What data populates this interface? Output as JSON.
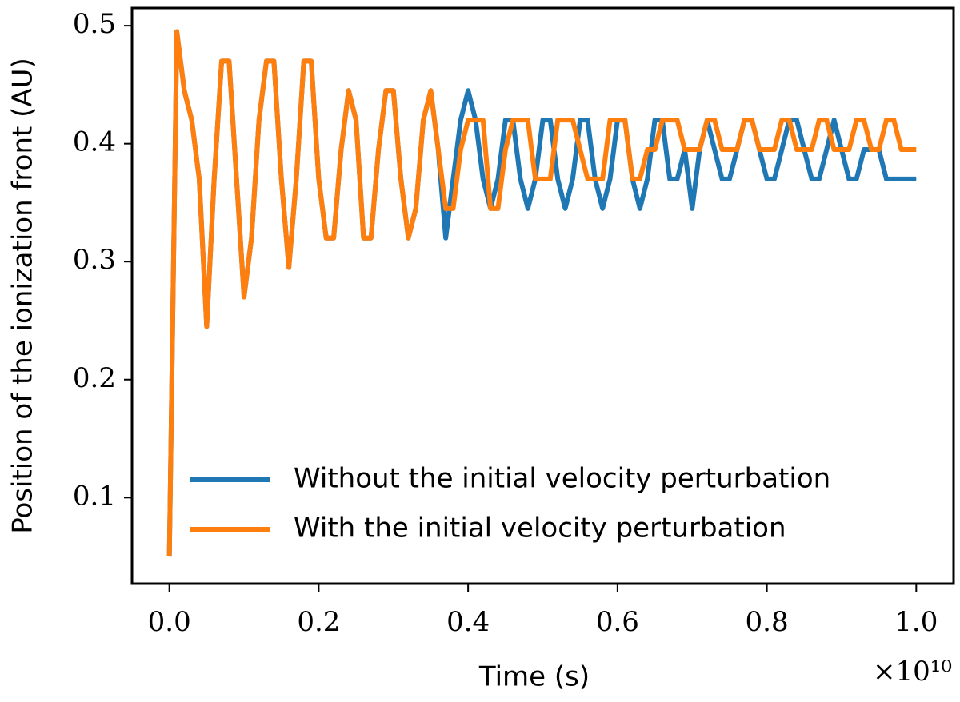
{
  "chart_data": {
    "type": "line",
    "xlabel": "Time (s)",
    "ylabel": "Position of the ionization front (AU)",
    "x_offset_label": "×10¹⁰",
    "xlim": [
      -0.05,
      1.05
    ],
    "ylim": [
      0.027,
      0.515
    ],
    "xticks": [
      {
        "value": 0,
        "label": "0.0"
      },
      {
        "value": 0.2,
        "label": "0.2"
      },
      {
        "value": 0.4,
        "label": "0.4"
      },
      {
        "value": 0.6,
        "label": "0.6"
      },
      {
        "value": 0.8,
        "label": "0.8"
      },
      {
        "value": 1,
        "label": "1.0"
      }
    ],
    "yticks": [
      0.1,
      0.2,
      0.3,
      0.4,
      0.5
    ],
    "grid": false,
    "legend": "lower right",
    "x": [
      0,
      0.01,
      0.02,
      0.03,
      0.04,
      0.05,
      0.06,
      0.07,
      0.08,
      0.09,
      0.1,
      0.11,
      0.12,
      0.13,
      0.14,
      0.15,
      0.16,
      0.17,
      0.18,
      0.19,
      0.2,
      0.21,
      0.22,
      0.23,
      0.24,
      0.25,
      0.26,
      0.27,
      0.28,
      0.29,
      0.3,
      0.31,
      0.32,
      0.33,
      0.34,
      0.35,
      0.36,
      0.37,
      0.38,
      0.39,
      0.4,
      0.41,
      0.42,
      0.43,
      0.44,
      0.45,
      0.46,
      0.47,
      0.48,
      0.49,
      0.5,
      0.51,
      0.52,
      0.53,
      0.54,
      0.55,
      0.56,
      0.57,
      0.58,
      0.59,
      0.6,
      0.61,
      0.62,
      0.63,
      0.64,
      0.65,
      0.66,
      0.67,
      0.68,
      0.69,
      0.7,
      0.71,
      0.72,
      0.73,
      0.74,
      0.75,
      0.76,
      0.77,
      0.78,
      0.79,
      0.8,
      0.81,
      0.82,
      0.83,
      0.84,
      0.85,
      0.86,
      0.87,
      0.88,
      0.89,
      0.9,
      0.91,
      0.92,
      0.93,
      0.94,
      0.95,
      0.96,
      0.97,
      0.98,
      0.99,
      1
    ],
    "series": [
      {
        "name": "Without the initial velocity perturbation",
        "color": "#1f77b4",
        "values": [
          0.05,
          0.495,
          0.445,
          0.42,
          0.37,
          0.245,
          0.37,
          0.47,
          0.47,
          0.37,
          0.27,
          0.32,
          0.42,
          0.47,
          0.47,
          0.37,
          0.295,
          0.37,
          0.47,
          0.47,
          0.37,
          0.32,
          0.32,
          0.395,
          0.445,
          0.42,
          0.32,
          0.32,
          0.395,
          0.445,
          0.445,
          0.37,
          0.32,
          0.345,
          0.42,
          0.445,
          0.395,
          0.32,
          0.37,
          0.42,
          0.445,
          0.42,
          0.37,
          0.345,
          0.37,
          0.42,
          0.42,
          0.37,
          0.345,
          0.37,
          0.42,
          0.42,
          0.37,
          0.345,
          0.37,
          0.42,
          0.42,
          0.37,
          0.345,
          0.37,
          0.42,
          0.42,
          0.37,
          0.345,
          0.37,
          0.42,
          0.42,
          0.37,
          0.37,
          0.395,
          0.345,
          0.395,
          0.42,
          0.395,
          0.37,
          0.37,
          0.395,
          0.42,
          0.42,
          0.395,
          0.37,
          0.37,
          0.395,
          0.42,
          0.42,
          0.395,
          0.37,
          0.37,
          0.395,
          0.42,
          0.395,
          0.37,
          0.37,
          0.395,
          0.395,
          0.395,
          0.37,
          0.37,
          0.37,
          0.37,
          0.37
        ]
      },
      {
        "name": "With the initial velocity perturbation",
        "color": "#ff7f0e",
        "values": [
          0.05,
          0.495,
          0.445,
          0.42,
          0.37,
          0.245,
          0.37,
          0.47,
          0.47,
          0.37,
          0.27,
          0.32,
          0.42,
          0.47,
          0.47,
          0.37,
          0.295,
          0.37,
          0.47,
          0.47,
          0.37,
          0.32,
          0.32,
          0.395,
          0.445,
          0.42,
          0.32,
          0.32,
          0.395,
          0.445,
          0.445,
          0.37,
          0.32,
          0.345,
          0.42,
          0.445,
          0.395,
          0.345,
          0.345,
          0.395,
          0.42,
          0.42,
          0.42,
          0.345,
          0.345,
          0.395,
          0.42,
          0.42,
          0.42,
          0.37,
          0.37,
          0.37,
          0.42,
          0.42,
          0.42,
          0.395,
          0.37,
          0.37,
          0.37,
          0.42,
          0.42,
          0.42,
          0.37,
          0.37,
          0.395,
          0.395,
          0.42,
          0.42,
          0.42,
          0.395,
          0.395,
          0.395,
          0.42,
          0.42,
          0.395,
          0.395,
          0.395,
          0.42,
          0.42,
          0.395,
          0.395,
          0.395,
          0.42,
          0.42,
          0.395,
          0.395,
          0.395,
          0.42,
          0.42,
          0.395,
          0.395,
          0.395,
          0.42,
          0.42,
          0.395,
          0.395,
          0.42,
          0.42,
          0.395,
          0.395,
          0.395
        ]
      }
    ]
  }
}
